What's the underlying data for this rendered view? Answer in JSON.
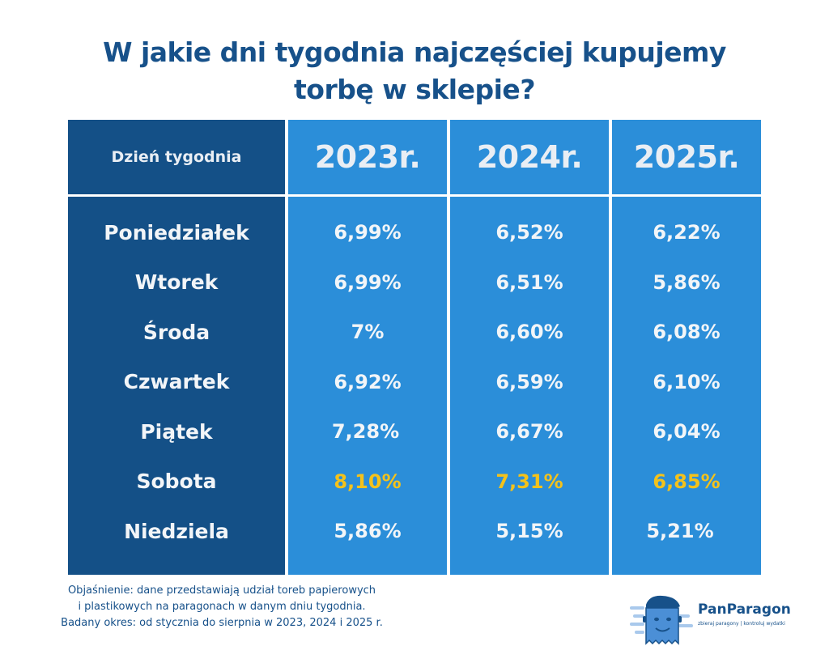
{
  "title_lines": [
    "W jakie dni tygodnia najczęściej kupujemy",
    "torbę w sklepie?"
  ],
  "colors": {
    "title": "#17518a",
    "day_column": "#145087",
    "year_columns": "#2b8ed9",
    "cell_text": "#f2f5f8",
    "highlight": "#f4c21b"
  },
  "chart_data": {
    "type": "table",
    "columns": [
      "Dzień tygodnia",
      "2023r.",
      "2024r.",
      "2025r."
    ],
    "rows": [
      {
        "day": "Poniedziałek",
        "values": [
          "6,99%",
          "6,52%",
          "6,22%"
        ],
        "highlight": false
      },
      {
        "day": "Wtorek",
        "values": [
          "6,99%",
          "6,51%",
          "5,86%"
        ],
        "highlight": false
      },
      {
        "day": "Środa",
        "values": [
          "7%",
          "6,60%",
          "6,08%"
        ],
        "highlight": false
      },
      {
        "day": "Czwartek",
        "values": [
          "6,92%",
          "6,59%",
          "6,10%"
        ],
        "highlight": false
      },
      {
        "day": "Piątek",
        "values": [
          "7,28%",
          "6,67%",
          "6,04%"
        ],
        "highlight": false
      },
      {
        "day": "Sobota",
        "values": [
          "8,10%",
          "7,31%",
          "6,85%"
        ],
        "highlight": true
      },
      {
        "day": "Niedziela",
        "values": [
          "5,86%",
          "5,15%",
          "5,21%"
        ],
        "highlight": false
      }
    ]
  },
  "note_lines": [
    "Objaśnienie: dane przedstawiają udział toreb papierowych",
    "i plastikowych na paragonach w danym dniu tygodnia.",
    "Badany okres: od stycznia do sierpnia w 2023, 2024 i 2025 r."
  ],
  "logo": {
    "brand": "PanParagon",
    "tagline": "zbieraj paragony | kontroluj wydatki",
    "icon": "mascot-receipt-face-icon"
  }
}
